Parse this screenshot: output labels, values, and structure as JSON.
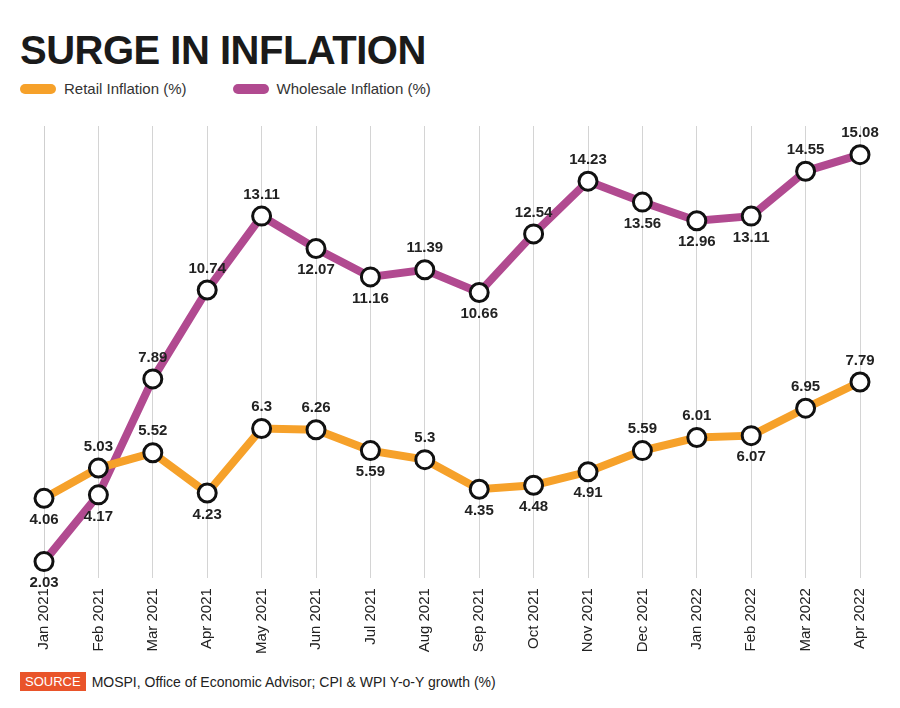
{
  "chart_data": {
    "type": "line",
    "title": "SURGE IN INFLATION",
    "categories": [
      "Jan 2021",
      "Feb 2021",
      "Mar 2021",
      "Apr 2021",
      "May 2021",
      "Jun 2021",
      "Jul 2021",
      "Aug 2021",
      "Sep 2021",
      "Oct 2021",
      "Nov 2021",
      "Dec 2021",
      "Jan 2022",
      "Feb 2022",
      "Mar 2022",
      "Apr 2022"
    ],
    "series": [
      {
        "name": "Retail Inflation (%)",
        "color": "#f6a12a",
        "values": [
          4.06,
          5.03,
          5.52,
          4.23,
          6.3,
          6.26,
          5.59,
          5.3,
          4.35,
          4.48,
          4.91,
          5.59,
          6.01,
          6.07,
          6.95,
          7.79
        ]
      },
      {
        "name": "Wholesale Inflation (%)",
        "color": "#b14a90",
        "values": [
          2.03,
          4.17,
          7.89,
          10.74,
          13.11,
          12.07,
          11.16,
          11.39,
          10.66,
          12.54,
          14.23,
          13.56,
          12.96,
          13.11,
          14.55,
          15.08
        ]
      }
    ],
    "ylim": [
      1.5,
      16
    ],
    "grid": true,
    "data_labels": true,
    "tick_labels": "x",
    "legend": "top left",
    "marker": "circle",
    "source_label": "SOURCE",
    "source": "MOSPI, Office of Economic Advisor; CPI & WPI Y-o-Y growth (%)"
  }
}
